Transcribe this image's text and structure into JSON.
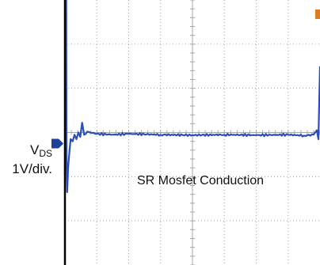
{
  "chart_data": {
    "type": "line",
    "title": "",
    "ylabel_main": "V",
    "ylabel_subscript": "DS",
    "ylabel_scale": "1V/div.",
    "annotation": "SR Mosfet Conduction",
    "grid": true,
    "grid_divisions": {
      "x": 8,
      "y": 6
    },
    "xlim": [
      0,
      8
    ],
    "ylim": [
      -3,
      3
    ],
    "ground_marker_level": -0.25,
    "series": [
      {
        "color": "#2a4fb8",
        "x": [
          0,
          0.02,
          0.035,
          0.05,
          0.07,
          0.1,
          0.14,
          0.18,
          0.24,
          0.3,
          0.36,
          0.42,
          0.48,
          0.54,
          0.6,
          0.7,
          0.8,
          1,
          1.5,
          2,
          3,
          4,
          5,
          6,
          7,
          7.5,
          7.8,
          7.9,
          7.95,
          8
        ],
        "y": [
          -1,
          5,
          5,
          -0.5,
          -1.35,
          -0.8,
          -0.45,
          -0.15,
          -0.2,
          -0.05,
          -0.15,
          0,
          -0.1,
          0.22,
          -0.05,
          0.02,
          0,
          -0.03,
          -0.05,
          -0.03,
          -0.05,
          -0.06,
          -0.05,
          -0.06,
          -0.05,
          -0.07,
          -0.05,
          0.05,
          -0.15,
          1.5
        ]
      }
    ],
    "colors": {
      "trace": "#2a4fb8",
      "grid": "#a6a6a6",
      "frame": "#000000",
      "marker": "#1d3f99",
      "corner_marker": "#e07a1f"
    }
  }
}
